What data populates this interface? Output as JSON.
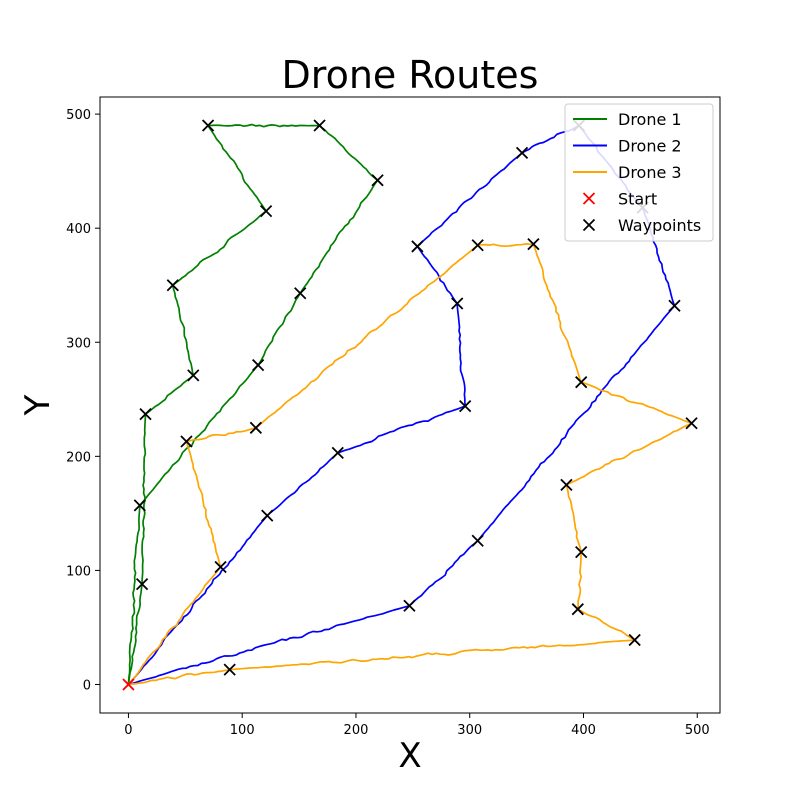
{
  "chart_data": {
    "type": "line",
    "title": "Drone Routes",
    "xlabel": "X",
    "ylabel": "Y",
    "xlim": [
      -25,
      520
    ],
    "ylim": [
      -25,
      515
    ],
    "xticks": [
      0,
      100,
      200,
      300,
      400,
      500
    ],
    "yticks": [
      0,
      100,
      200,
      300,
      400,
      500
    ],
    "grid": false,
    "legend_position": "top-right",
    "start": {
      "name": "Start",
      "x": 0,
      "y": 0,
      "color": "#ff0000"
    },
    "waypoint_label": "Waypoints",
    "waypoint_color": "#000000",
    "series": [
      {
        "name": "Drone 1",
        "color": "#008000",
        "points": [
          [
            0,
            0
          ],
          [
            12,
            88
          ],
          [
            15,
            237
          ],
          [
            57,
            271
          ],
          [
            39,
            350
          ],
          [
            121,
            415
          ],
          [
            70,
            490
          ],
          [
            168,
            490
          ],
          [
            219,
            442
          ],
          [
            151,
            343
          ],
          [
            114,
            280
          ],
          [
            10,
            157
          ],
          [
            0,
            0
          ]
        ]
      },
      {
        "name": "Drone 2",
        "color": "#0000ff",
        "points": [
          [
            0,
            0
          ],
          [
            247,
            69
          ],
          [
            307,
            126
          ],
          [
            480,
            332
          ],
          [
            452,
            418
          ],
          [
            396,
            490
          ],
          [
            346,
            466
          ],
          [
            254,
            384
          ],
          [
            289,
            334
          ],
          [
            296,
            244
          ],
          [
            184,
            203
          ],
          [
            122,
            148
          ],
          [
            0,
            0
          ]
        ]
      },
      {
        "name": "Drone 3",
        "color": "#ffa500",
        "points": [
          [
            0,
            0
          ],
          [
            89,
            13
          ],
          [
            445,
            39
          ],
          [
            395,
            66
          ],
          [
            398,
            116
          ],
          [
            385,
            175
          ],
          [
            495,
            229
          ],
          [
            398,
            265
          ],
          [
            356,
            386
          ],
          [
            307,
            385
          ],
          [
            112,
            225
          ],
          [
            51,
            213
          ],
          [
            81,
            103
          ],
          [
            0,
            0
          ]
        ]
      }
    ],
    "waypoints": [
      [
        70,
        490
      ],
      [
        168,
        490
      ],
      [
        219,
        442
      ],
      [
        121,
        415
      ],
      [
        39,
        350
      ],
      [
        151,
        343
      ],
      [
        57,
        271
      ],
      [
        114,
        280
      ],
      [
        15,
        237
      ],
      [
        10,
        157
      ],
      [
        12,
        88
      ],
      [
        346,
        466
      ],
      [
        396,
        490
      ],
      [
        452,
        418
      ],
      [
        480,
        332
      ],
      [
        254,
        384
      ],
      [
        289,
        334
      ],
      [
        296,
        244
      ],
      [
        184,
        203
      ],
      [
        122,
        148
      ],
      [
        307,
        126
      ],
      [
        247,
        69
      ],
      [
        307,
        385
      ],
      [
        356,
        386
      ],
      [
        398,
        265
      ],
      [
        495,
        229
      ],
      [
        112,
        225
      ],
      [
        51,
        213
      ],
      [
        385,
        175
      ],
      [
        398,
        116
      ],
      [
        81,
        103
      ],
      [
        395,
        66
      ],
      [
        445,
        39
      ],
      [
        89,
        13
      ]
    ]
  }
}
